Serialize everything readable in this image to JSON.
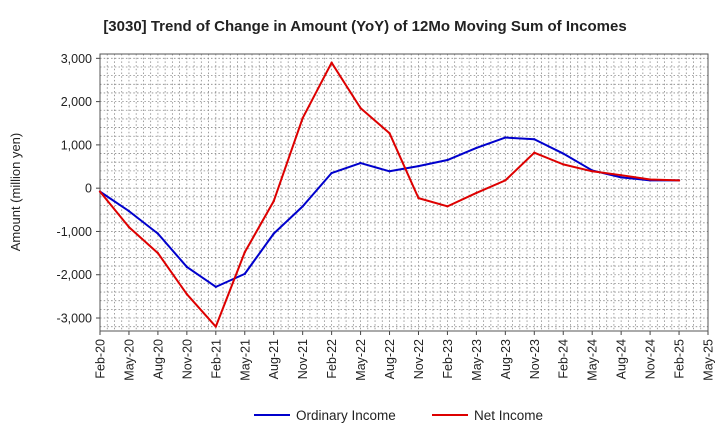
{
  "chart_data": {
    "type": "line",
    "title": "[3030]  Trend of Change in Amount (YoY) of 12Mo Moving Sum of Incomes",
    "xlabel": "",
    "ylabel": "Amount (million yen)",
    "ylim": [
      -3300,
      3100
    ],
    "yticks": [
      -3000,
      -2000,
      -1000,
      0,
      1000,
      2000,
      3000
    ],
    "ytick_labels": [
      "-3,000",
      "-2,000",
      "-1,000",
      "0",
      "1,000",
      "2,000",
      "3,000"
    ],
    "x": [
      "Feb-20",
      "May-20",
      "Aug-20",
      "Nov-20",
      "Feb-21",
      "May-21",
      "Aug-21",
      "Nov-21",
      "Feb-22",
      "May-22",
      "Aug-22",
      "Nov-22",
      "Feb-23",
      "May-23",
      "Aug-23",
      "Nov-23",
      "Feb-24",
      "May-24",
      "Aug-24",
      "Nov-24",
      "Feb-25",
      "May-25"
    ],
    "grid": true,
    "legend_position": "bottom-center",
    "series": [
      {
        "name": "Ordinary Income",
        "color": "#0000cc",
        "values": [
          -80,
          -530,
          -1050,
          -1820,
          -2280,
          -1980,
          -1050,
          -420,
          350,
          580,
          390,
          510,
          650,
          930,
          1170,
          1130,
          800,
          410,
          250,
          180,
          180,
          null
        ]
      },
      {
        "name": "Net Income",
        "color": "#dd0000",
        "values": [
          -80,
          -900,
          -1500,
          -2450,
          -3200,
          -1480,
          -300,
          1620,
          2900,
          1850,
          1270,
          -230,
          -420,
          -110,
          180,
          820,
          550,
          390,
          300,
          200,
          180,
          null
        ]
      }
    ]
  }
}
